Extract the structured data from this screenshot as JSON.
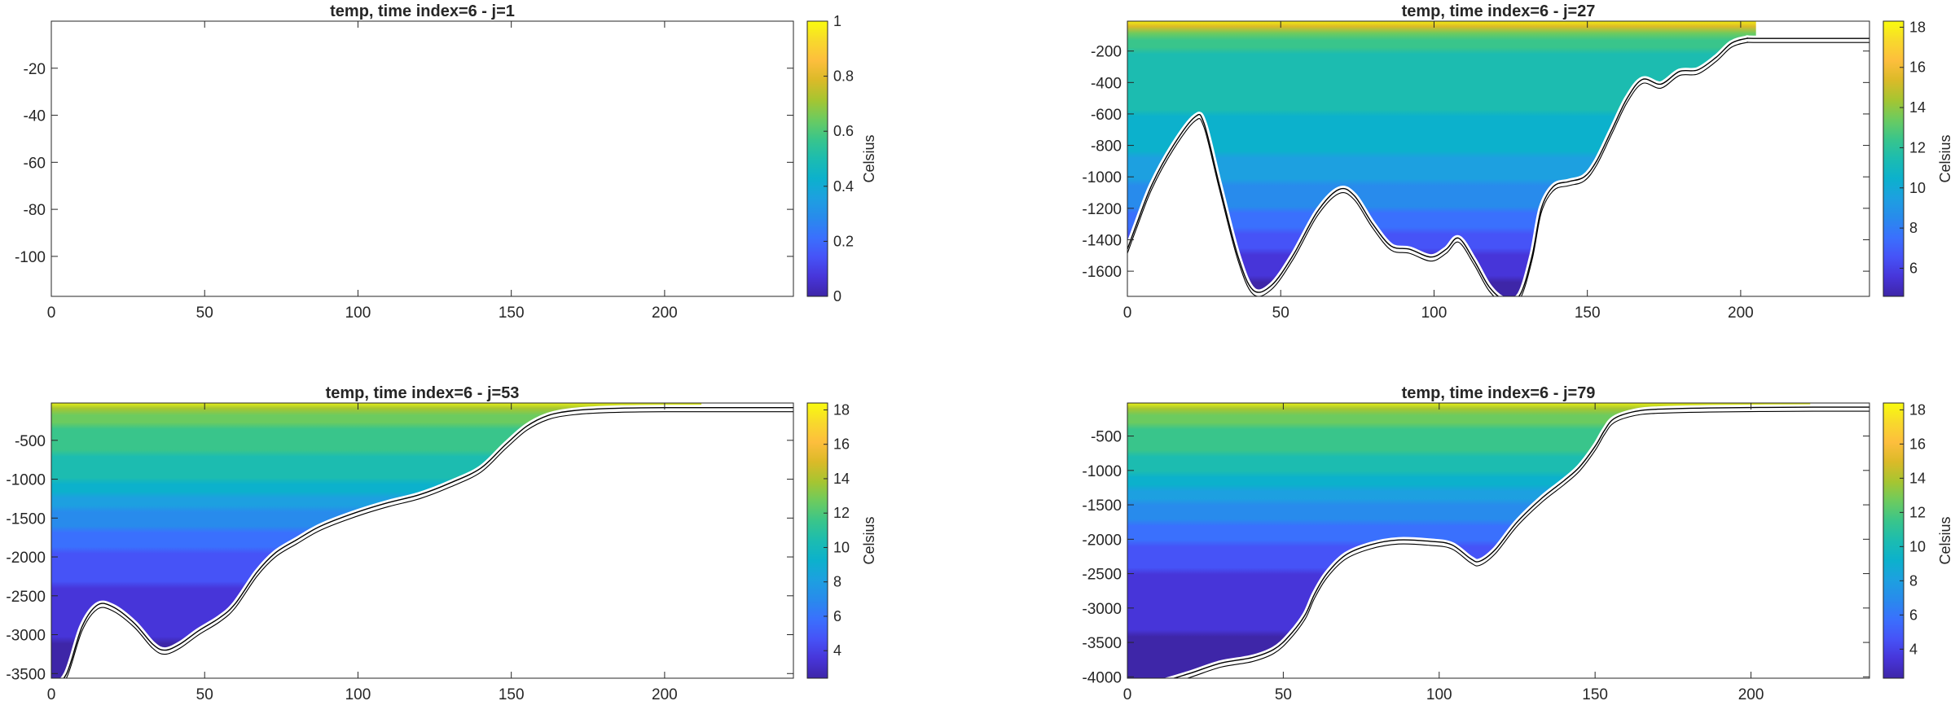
{
  "colormap": [
    "#3e26a8",
    "#4735d9",
    "#4653f7",
    "#3a70fd",
    "#288bec",
    "#1da0e0",
    "#0cb1cc",
    "#1cbcb0",
    "#39c58b",
    "#6ccb5f",
    "#a6c531",
    "#dbba28",
    "#fdbe3d",
    "#f8d92c",
    "#f9fb0e"
  ],
  "chart_data": [
    {
      "type": "heatmap",
      "title": "temp, time index=6 - j=1",
      "clabel": "Celsius",
      "xlim": [
        0,
        242
      ],
      "ylim": [
        -117,
        0
      ],
      "xticks": [
        0,
        50,
        100,
        150,
        200
      ],
      "yticks": [
        -20,
        -40,
        -60,
        -80,
        -100
      ],
      "clim": [
        0,
        1
      ],
      "cticks": [
        0,
        0.2,
        0.4,
        0.6,
        0.8,
        1
      ],
      "bathymetry": [],
      "valid_x_max": 0,
      "temp_profile": []
    },
    {
      "type": "heatmap",
      "title": "temp, time index=6 - j=27",
      "clabel": "Celsius",
      "xlim": [
        0,
        242
      ],
      "ylim": [
        -1760,
        -10
      ],
      "xticks": [
        0,
        50,
        100,
        150,
        200
      ],
      "yticks": [
        -200,
        -400,
        -600,
        -800,
        -1000,
        -1200,
        -1400,
        -1600
      ],
      "clim": [
        4.6,
        18.3
      ],
      "cticks": [
        6,
        8,
        10,
        12,
        14,
        16,
        18
      ],
      "bathymetry": [
        [
          0,
          -1460
        ],
        [
          3,
          -1300
        ],
        [
          8,
          -1050
        ],
        [
          15,
          -800
        ],
        [
          22,
          -620
        ],
        [
          25,
          -660
        ],
        [
          30,
          -1050
        ],
        [
          36,
          -1500
        ],
        [
          41,
          -1720
        ],
        [
          47,
          -1690
        ],
        [
          54,
          -1500
        ],
        [
          62,
          -1220
        ],
        [
          69,
          -1080
        ],
        [
          74,
          -1120
        ],
        [
          80,
          -1300
        ],
        [
          86,
          -1440
        ],
        [
          92,
          -1460
        ],
        [
          99,
          -1510
        ],
        [
          104,
          -1460
        ],
        [
          108,
          -1390
        ],
        [
          113,
          -1530
        ],
        [
          118,
          -1700
        ],
        [
          123,
          -1780
        ],
        [
          128,
          -1750
        ],
        [
          132,
          -1500
        ],
        [
          135,
          -1200
        ],
        [
          139,
          -1060
        ],
        [
          144,
          -1030
        ],
        [
          149,
          -1000
        ],
        [
          153,
          -900
        ],
        [
          158,
          -700
        ],
        [
          163,
          -500
        ],
        [
          168,
          -380
        ],
        [
          174,
          -410
        ],
        [
          180,
          -330
        ],
        [
          186,
          -320
        ],
        [
          192,
          -240
        ],
        [
          197,
          -150
        ],
        [
          202,
          -120
        ],
        [
          206,
          -120
        ],
        [
          242,
          -120
        ]
      ],
      "valid_x_max": 205,
      "temp_profile": [
        [
          0,
          18.3
        ],
        [
          25,
          17
        ],
        [
          60,
          14
        ],
        [
          120,
          12.4
        ],
        [
          200,
          11.9
        ],
        [
          350,
          11.4
        ],
        [
          500,
          11.3
        ],
        [
          700,
          10.6
        ],
        [
          900,
          9.8
        ],
        [
          1100,
          8.6
        ],
        [
          1300,
          7.4
        ],
        [
          1500,
          6
        ],
        [
          1760,
          4.6
        ]
      ]
    },
    {
      "type": "heatmap",
      "title": "temp, time index=6 - j=53",
      "clabel": "Celsius",
      "xlim": [
        0,
        242
      ],
      "ylim": [
        -3560,
        -20
      ],
      "xticks": [
        0,
        50,
        100,
        150,
        200
      ],
      "yticks": [
        -500,
        -1000,
        -1500,
        -2000,
        -2500,
        -3000,
        -3500
      ],
      "clim": [
        2.4,
        18.4
      ],
      "cticks": [
        4,
        6,
        8,
        10,
        12,
        14,
        16,
        18
      ],
      "bathymetry": [
        [
          0,
          -3700
        ],
        [
          5,
          -3500
        ],
        [
          10,
          -2900
        ],
        [
          15,
          -2620
        ],
        [
          20,
          -2640
        ],
        [
          27,
          -2850
        ],
        [
          33,
          -3120
        ],
        [
          37,
          -3200
        ],
        [
          42,
          -3120
        ],
        [
          48,
          -2950
        ],
        [
          55,
          -2780
        ],
        [
          60,
          -2600
        ],
        [
          67,
          -2200
        ],
        [
          73,
          -1950
        ],
        [
          80,
          -1780
        ],
        [
          88,
          -1600
        ],
        [
          100,
          -1420
        ],
        [
          110,
          -1300
        ],
        [
          120,
          -1200
        ],
        [
          130,
          -1050
        ],
        [
          140,
          -860
        ],
        [
          148,
          -560
        ],
        [
          155,
          -320
        ],
        [
          162,
          -180
        ],
        [
          170,
          -120
        ],
        [
          182,
          -90
        ],
        [
          200,
          -80
        ],
        [
          242,
          -80
        ]
      ],
      "valid_x_max": 212,
      "temp_profile": [
        [
          0,
          18.4
        ],
        [
          30,
          17
        ],
        [
          80,
          14.5
        ],
        [
          200,
          12.5
        ],
        [
          400,
          11.6
        ],
        [
          700,
          11
        ],
        [
          1000,
          9.8
        ],
        [
          1300,
          8
        ],
        [
          1600,
          6.5
        ],
        [
          2000,
          5
        ],
        [
          2500,
          3.8
        ],
        [
          3000,
          3
        ],
        [
          3560,
          2.4
        ]
      ]
    },
    {
      "type": "heatmap",
      "title": "temp, time index=6 - j=79",
      "clabel": "Celsius",
      "xlim": [
        0,
        238
      ],
      "ylim": [
        -4020,
        -20
      ],
      "xticks": [
        0,
        50,
        100,
        150,
        200
      ],
      "yticks": [
        -500,
        -1000,
        -1500,
        -2000,
        -2500,
        -3000,
        -3500,
        -4000
      ],
      "clim": [
        2.3,
        18.4
      ],
      "cticks": [
        4,
        6,
        8,
        10,
        12,
        14,
        16,
        18
      ],
      "bathymetry": [
        [
          0,
          -4150
        ],
        [
          10,
          -4080
        ],
        [
          20,
          -3950
        ],
        [
          30,
          -3800
        ],
        [
          40,
          -3720
        ],
        [
          47,
          -3600
        ],
        [
          52,
          -3400
        ],
        [
          57,
          -3100
        ],
        [
          60,
          -2800
        ],
        [
          64,
          -2500
        ],
        [
          70,
          -2230
        ],
        [
          78,
          -2080
        ],
        [
          87,
          -2010
        ],
        [
          97,
          -2030
        ],
        [
          104,
          -2080
        ],
        [
          110,
          -2280
        ],
        [
          113,
          -2320
        ],
        [
          118,
          -2150
        ],
        [
          125,
          -1750
        ],
        [
          133,
          -1400
        ],
        [
          140,
          -1150
        ],
        [
          145,
          -950
        ],
        [
          150,
          -650
        ],
        [
          153,
          -420
        ],
        [
          156,
          -250
        ],
        [
          162,
          -150
        ],
        [
          170,
          -110
        ],
        [
          190,
          -90
        ],
        [
          220,
          -80
        ],
        [
          238,
          -80
        ]
      ],
      "valid_x_max": 219,
      "temp_profile": [
        [
          0,
          18.4
        ],
        [
          30,
          17
        ],
        [
          80,
          14.5
        ],
        [
          200,
          12.8
        ],
        [
          400,
          11.8
        ],
        [
          700,
          11
        ],
        [
          1000,
          10
        ],
        [
          1300,
          8.4
        ],
        [
          1600,
          7
        ],
        [
          2000,
          5.4
        ],
        [
          2500,
          4
        ],
        [
          3000,
          3.2
        ],
        [
          3500,
          2.7
        ],
        [
          4020,
          2.3
        ]
      ]
    }
  ]
}
